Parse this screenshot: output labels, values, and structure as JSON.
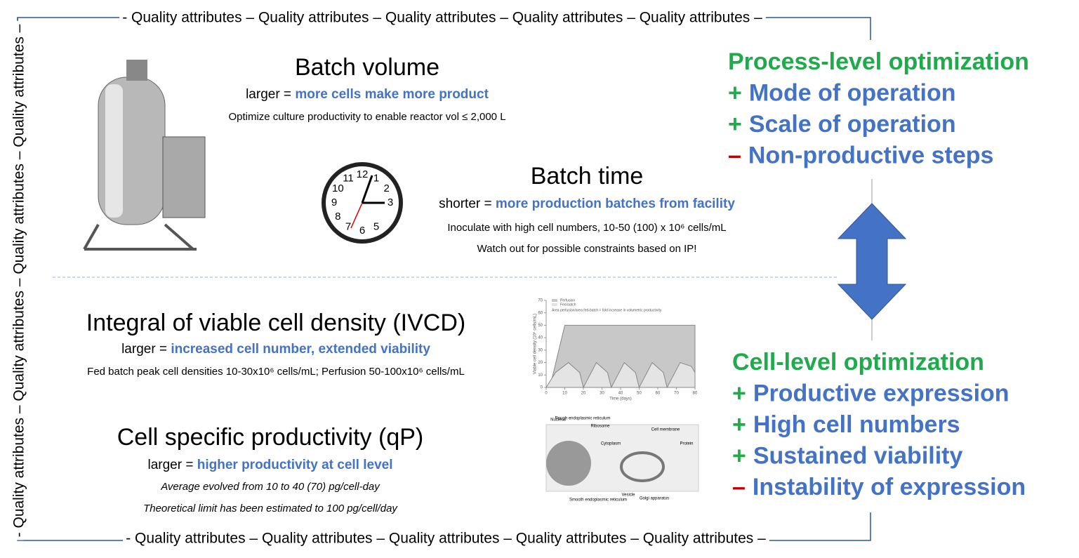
{
  "border_text": {
    "top": "- Quality attributes – Quality attributes – Quality attributes – Quality attributes – Quality attributes –",
    "bottom": "- Quality attributes – Quality attributes – Quality attributes – Quality attributes – Quality attributes –",
    "left": "- Quality attributes – Quality attributes – Quality attributes – Quality attributes –"
  },
  "batch_volume": {
    "title": "Batch volume",
    "prefix": "larger = ",
    "emphasis": "more cells make more product",
    "notes": [
      "Optimize culture productivity to enable reactor vol ≤ 2,000 L"
    ]
  },
  "batch_time": {
    "title": "Batch time",
    "prefix": "shorter = ",
    "emphasis": "more production batches from facility",
    "notes": [
      "Inoculate with high cell numbers, 10-50 (100) x 10⁶ cells/mL",
      "Watch out for possible constraints based on IP!"
    ]
  },
  "ivcd": {
    "title": "Integral of viable cell density (IVCD)",
    "prefix": "larger = ",
    "emphasis": "increased cell number, extended viability",
    "notes": [
      "Fed batch peak cell densities 10-30x10⁶ cells/mL; Perfusion 50-100x10⁶ cells/mL"
    ]
  },
  "qp": {
    "title": "Cell specific productivity (qP)",
    "prefix": "larger = ",
    "emphasis": "higher productivity at cell level",
    "notes": [
      "Average evolved from 10 to 40 (70) pg/cell-day",
      "Theoretical limit has been estimated to 100 pg/cell/day"
    ]
  },
  "process_level": {
    "title": "Process-level optimization",
    "items": [
      {
        "sign": "+",
        "text": "Mode of operation"
      },
      {
        "sign": "+",
        "text": "Scale of operation"
      },
      {
        "sign": "–",
        "text": "Non-productive steps"
      }
    ]
  },
  "cell_level": {
    "title": "Cell-level optimization",
    "items": [
      {
        "sign": "+",
        "text": "Productive expression"
      },
      {
        "sign": "+",
        "text": "High cell numbers"
      },
      {
        "sign": "+",
        "text": "Sustained viability"
      },
      {
        "sign": "–",
        "text": "Instability of expression"
      }
    ]
  },
  "clock": {
    "numbers": [
      "12",
      "1",
      "2",
      "3",
      "5",
      "6",
      "7",
      "8",
      "9",
      "10",
      "11"
    ]
  },
  "growth_chart": {
    "legend": [
      "Perfusion",
      "Fed-batch"
    ],
    "annotation": "Area perfusion/area fed-batch = fold increase in volumetric productivity",
    "xlabel": "Time (days)",
    "ylabel": "Viable cell density (10⁶ cells/mL)",
    "xlim": [
      0,
      80
    ],
    "ylim": [
      0,
      70
    ],
    "xticks": [
      0,
      10,
      20,
      30,
      40,
      50,
      60,
      70,
      80
    ],
    "yticks": [
      0,
      10,
      20,
      30,
      40,
      50,
      60,
      70
    ],
    "series": [
      {
        "name": "Perfusion",
        "x": [
          2,
          10,
          80
        ],
        "values": [
          0,
          50,
          50
        ]
      },
      {
        "name": "Fed-batch",
        "x": [
          0,
          5,
          12,
          18,
          20,
          27,
          33,
          35,
          42,
          48,
          50,
          57,
          63,
          65,
          72,
          78,
          80
        ],
        "values": [
          0,
          12,
          20,
          12,
          0,
          20,
          12,
          0,
          20,
          12,
          0,
          20,
          12,
          0,
          20,
          17,
          12
        ]
      }
    ]
  },
  "cell_diagram": {
    "labels": [
      "Nucleus",
      "Rough endoplasmic reticulum",
      "Ribosome",
      "Cell membrane",
      "Cytoplasm",
      "Protein",
      "Smooth endoplasmic reticulum",
      "Vesicle",
      "Golgi apparatus"
    ]
  }
}
